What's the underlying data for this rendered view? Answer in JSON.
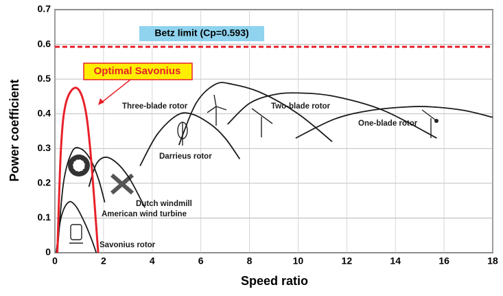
{
  "chart_data": {
    "type": "line",
    "xlabel": "Speed ratio",
    "ylabel": "Power coefficient",
    "xlim": [
      0,
      18
    ],
    "ylim": [
      0,
      0.7
    ],
    "xticks": [
      0,
      2,
      4,
      6,
      8,
      10,
      12,
      14,
      16,
      18
    ],
    "yticks": [
      0,
      0.1,
      0.2,
      0.3,
      0.4,
      0.5,
      0.6,
      0.7
    ],
    "grid": true,
    "betz": {
      "label": "Betz limit (Cp=0.593)",
      "value": 0.593,
      "color": "#e8202a"
    },
    "series": [
      {
        "name": "Savonius rotor",
        "color": "#1a1a1a",
        "x": [
          0.05,
          0.25,
          0.55,
          0.85,
          1.2,
          1.5,
          1.7
        ],
        "values": [
          0,
          0.1,
          0.145,
          0.135,
          0.09,
          0.04,
          0
        ]
      },
      {
        "name": "American wind turbine",
        "color": "#1a1a1a",
        "x": [
          0.1,
          0.35,
          0.7,
          1.05,
          1.45,
          1.8,
          2.05
        ],
        "values": [
          0,
          0.2,
          0.29,
          0.3,
          0.27,
          0.21,
          0.145
        ]
      },
      {
        "name": "Dutch windmill",
        "color": "#1a1a1a",
        "x": [
          1.4,
          1.7,
          2.1,
          2.6,
          3.1,
          3.7
        ],
        "values": [
          0.19,
          0.255,
          0.275,
          0.255,
          0.21,
          0.13
        ]
      },
      {
        "name": "Darrieus rotor",
        "color": "#1a1a1a",
        "x": [
          3.5,
          4.2,
          5.0,
          5.6,
          6.4,
          7.0,
          7.6
        ],
        "values": [
          0.25,
          0.34,
          0.395,
          0.4,
          0.37,
          0.33,
          0.27
        ]
      },
      {
        "name": "Three-blade rotor",
        "color": "#1a1a1a",
        "x": [
          5.1,
          5.8,
          6.6,
          7.3,
          8.5,
          10.0,
          11.4
        ],
        "values": [
          0.31,
          0.43,
          0.485,
          0.485,
          0.46,
          0.4,
          0.32
        ]
      },
      {
        "name": "Two-blade rotor",
        "color": "#1a1a1a",
        "x": [
          7.1,
          8.0,
          9.0,
          10.0,
          11.5,
          13.5,
          15.7
        ],
        "values": [
          0.37,
          0.43,
          0.455,
          0.46,
          0.45,
          0.41,
          0.33
        ]
      },
      {
        "name": "One-blade rotor",
        "color": "#1a1a1a",
        "x": [
          9.9,
          11.5,
          13.0,
          14.5,
          15.5,
          16.8,
          18.0
        ],
        "values": [
          0.33,
          0.385,
          0.41,
          0.42,
          0.42,
          0.41,
          0.39
        ]
      },
      {
        "name": "Optimal Savonius",
        "color": "#e8202a",
        "x": [
          0.1,
          0.25,
          0.45,
          0.85,
          1.2,
          1.45,
          1.78
        ],
        "values": [
          0,
          0.3,
          0.43,
          0.475,
          0.43,
          0.3,
          0
        ]
      }
    ]
  }
}
